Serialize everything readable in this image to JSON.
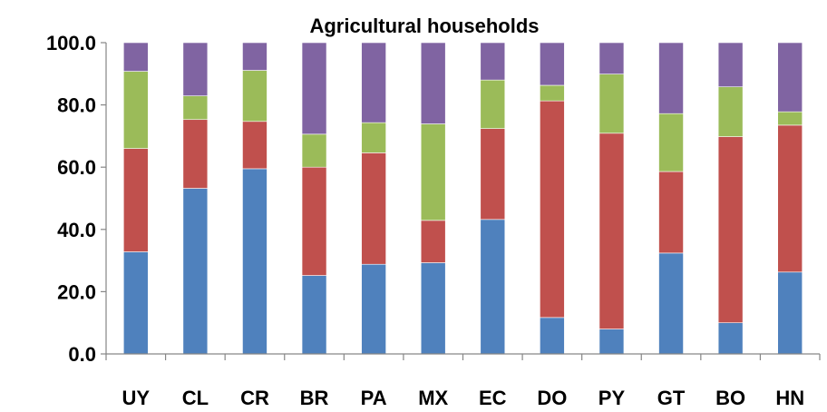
{
  "chart_data": {
    "type": "bar",
    "stacked": true,
    "title": "Agricultural households",
    "xlabel": "",
    "ylabel": "",
    "ylim": [
      0,
      100
    ],
    "yticks": [
      "0.0",
      "20.0",
      "40.0",
      "60.0",
      "80.0",
      "100.0"
    ],
    "ytick_values": [
      0,
      20,
      40,
      60,
      80,
      100
    ],
    "grid": false,
    "legend": "none",
    "categories": [
      "UY",
      "CL",
      "CR",
      "BR",
      "PA",
      "MX",
      "EC",
      "DO",
      "PY",
      "GT",
      "BO",
      "HN"
    ],
    "series": [
      {
        "color": "#4F81BD",
        "values": [
          32.8,
          53.2,
          59.5,
          25.2,
          28.8,
          29.3,
          43.2,
          11.7,
          8.0,
          32.4,
          10.0,
          26.3
        ]
      },
      {
        "color": "#C0504D",
        "values": [
          33.2,
          22.1,
          15.2,
          34.8,
          35.8,
          13.6,
          29.2,
          69.6,
          62.9,
          26.2,
          59.8,
          47.2
        ]
      },
      {
        "color": "#9BBB59",
        "values": [
          24.8,
          7.6,
          16.4,
          10.6,
          9.7,
          31.0,
          15.6,
          5.0,
          19.0,
          18.6,
          16.0,
          4.3
        ]
      },
      {
        "color": "#8064A2",
        "values": [
          9.2,
          17.1,
          8.9,
          29.4,
          25.7,
          26.1,
          12.0,
          13.7,
          10.1,
          22.8,
          14.2,
          22.2
        ]
      }
    ]
  }
}
